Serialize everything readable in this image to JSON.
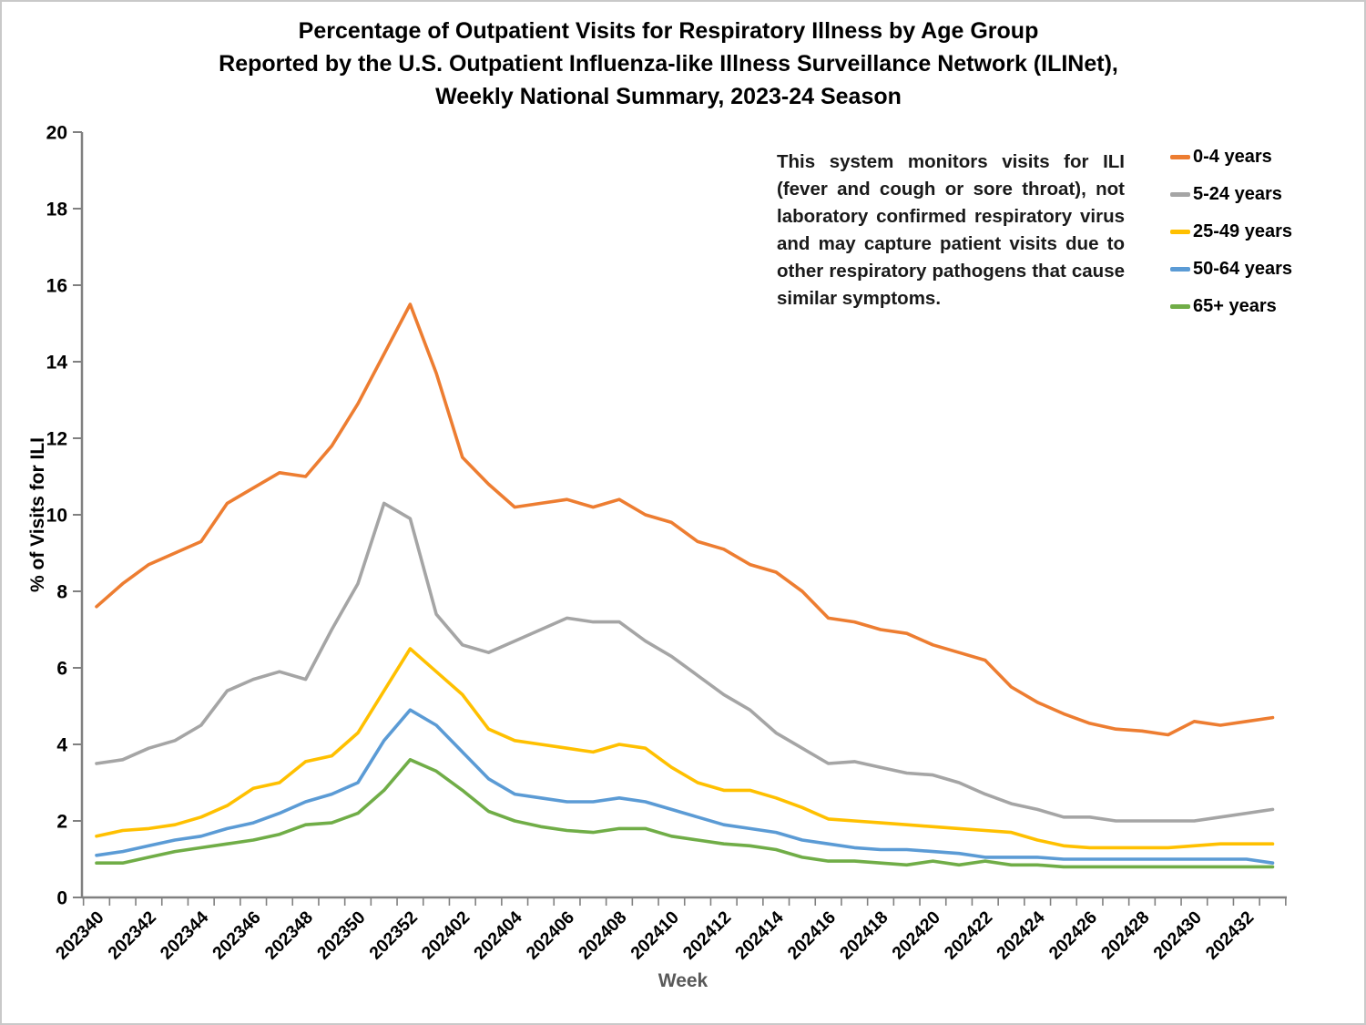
{
  "title": {
    "line1": "Percentage of Outpatient Visits for Respiratory Illness by Age Group",
    "line2": "Reported by the U.S. Outpatient Influenza-like Illness Surveillance Network (ILINet),",
    "line3": "Weekly National Summary, 2023-24 Season"
  },
  "annotation": {
    "text": "This system monitors visits for ILI (fever and cough or sore throat), not laboratory confirmed respiratory virus and may capture patient visits due to other respiratory pathogens that cause similar symptoms."
  },
  "axis_style": {
    "axis_color": "#808080",
    "tick_label_color": "#000000",
    "x_title_color": "#595959"
  },
  "chart_data": {
    "type": "line",
    "title": "Percentage of Outpatient Visits for Respiratory Illness by Age Group, ILINet, Weekly National Summary, 2023-24 Season",
    "xlabel": "Week",
    "ylabel": "% of Visits for ILI",
    "ylim": [
      0,
      20
    ],
    "y_ticks": [
      0,
      2,
      4,
      6,
      8,
      10,
      12,
      14,
      16,
      18,
      20
    ],
    "grid": false,
    "legend_position": "right",
    "x_tick_every": 2,
    "x_tick_labels": [
      "202340",
      "202342",
      "202344",
      "202346",
      "202348",
      "202350",
      "202352",
      "202402",
      "202404",
      "202406",
      "202408",
      "202410",
      "202412",
      "202414",
      "202416",
      "202418",
      "202420",
      "202422",
      "202424",
      "202426",
      "202428",
      "202430",
      "202432"
    ],
    "categories": [
      "202340",
      "202341",
      "202342",
      "202343",
      "202344",
      "202345",
      "202346",
      "202347",
      "202348",
      "202349",
      "202350",
      "202351",
      "202352",
      "202401",
      "202402",
      "202403",
      "202404",
      "202405",
      "202406",
      "202407",
      "202408",
      "202409",
      "202410",
      "202411",
      "202412",
      "202413",
      "202414",
      "202415",
      "202416",
      "202417",
      "202418",
      "202419",
      "202420",
      "202421",
      "202422",
      "202423",
      "202424",
      "202425",
      "202426",
      "202427",
      "202428",
      "202429",
      "202430",
      "202431",
      "202432",
      "202433"
    ],
    "series": [
      {
        "name": "0-4 years",
        "color": "#ED7D31",
        "values": [
          7.6,
          8.2,
          8.7,
          9.0,
          9.3,
          10.3,
          10.7,
          11.1,
          11.0,
          11.8,
          12.9,
          14.2,
          15.5,
          13.7,
          11.5,
          10.8,
          10.2,
          10.3,
          10.4,
          10.2,
          10.4,
          10.0,
          9.8,
          9.3,
          9.1,
          8.7,
          8.5,
          8.0,
          7.3,
          7.2,
          7.0,
          6.9,
          6.6,
          6.4,
          6.2,
          5.5,
          5.1,
          4.8,
          4.55,
          4.4,
          4.35,
          4.25,
          4.6,
          4.5,
          4.6,
          4.7
        ]
      },
      {
        "name": "5-24 years",
        "color": "#A5A5A5",
        "values": [
          3.5,
          3.6,
          3.9,
          4.1,
          4.5,
          5.4,
          5.7,
          5.9,
          5.7,
          7.0,
          8.2,
          10.3,
          9.9,
          7.4,
          6.6,
          6.4,
          6.7,
          7.0,
          7.3,
          7.2,
          7.2,
          6.7,
          6.3,
          5.8,
          5.3,
          4.9,
          4.3,
          3.9,
          3.5,
          3.55,
          3.4,
          3.25,
          3.2,
          3.0,
          2.7,
          2.45,
          2.3,
          2.1,
          2.1,
          2.0,
          2.0,
          2.0,
          2.0,
          2.1,
          2.2,
          2.3
        ]
      },
      {
        "name": "25-49 years",
        "color": "#FFC000",
        "values": [
          1.6,
          1.75,
          1.8,
          1.9,
          2.1,
          2.4,
          2.85,
          3.0,
          3.55,
          3.7,
          4.3,
          5.4,
          6.5,
          5.9,
          5.3,
          4.4,
          4.1,
          4.0,
          3.9,
          3.8,
          4.0,
          3.9,
          3.4,
          3.0,
          2.8,
          2.8,
          2.6,
          2.35,
          2.05,
          2.0,
          1.95,
          1.9,
          1.85,
          1.8,
          1.75,
          1.7,
          1.5,
          1.35,
          1.3,
          1.3,
          1.3,
          1.3,
          1.35,
          1.4,
          1.4,
          1.4
        ]
      },
      {
        "name": "50-64 years",
        "color": "#5B9BD5",
        "values": [
          1.1,
          1.2,
          1.35,
          1.5,
          1.6,
          1.8,
          1.95,
          2.2,
          2.5,
          2.7,
          3.0,
          4.1,
          4.9,
          4.5,
          3.8,
          3.1,
          2.7,
          2.6,
          2.5,
          2.5,
          2.6,
          2.5,
          2.3,
          2.1,
          1.9,
          1.8,
          1.7,
          1.5,
          1.4,
          1.3,
          1.25,
          1.25,
          1.2,
          1.15,
          1.05,
          1.05,
          1.05,
          1.0,
          1.0,
          1.0,
          1.0,
          1.0,
          1.0,
          1.0,
          1.0,
          0.9
        ]
      },
      {
        "name": "65+ years",
        "color": "#70AD47",
        "values": [
          0.9,
          0.9,
          1.05,
          1.2,
          1.3,
          1.4,
          1.5,
          1.65,
          1.9,
          1.95,
          2.2,
          2.8,
          3.6,
          3.3,
          2.8,
          2.25,
          2.0,
          1.85,
          1.75,
          1.7,
          1.8,
          1.8,
          1.6,
          1.5,
          1.4,
          1.35,
          1.25,
          1.05,
          0.95,
          0.95,
          0.9,
          0.85,
          0.95,
          0.85,
          0.95,
          0.85,
          0.85,
          0.8,
          0.8,
          0.8,
          0.8,
          0.8,
          0.8,
          0.8,
          0.8,
          0.8
        ]
      }
    ]
  }
}
